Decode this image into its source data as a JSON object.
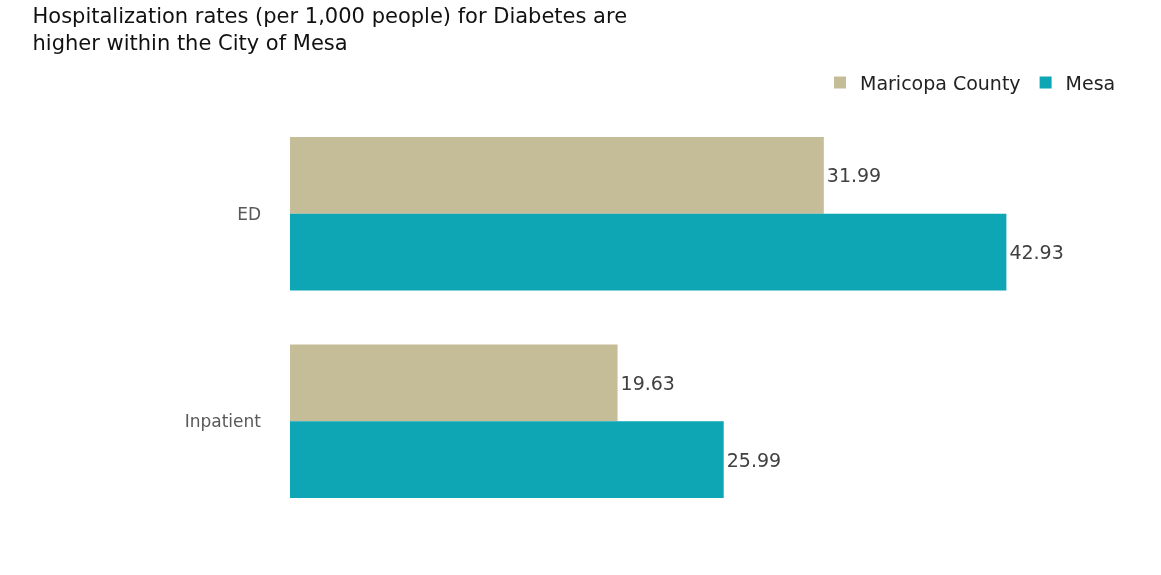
{
  "chart_data": {
    "type": "bar",
    "orientation": "horizontal",
    "title": "Hospitalization rates (per 1,000 people) for Diabetes are higher within the City of Mesa",
    "categories": [
      "ED",
      "Inpatient"
    ],
    "series": [
      {
        "name": "Maricopa County",
        "color": "#c5bd98",
        "values": [
          31.99,
          19.63
        ]
      },
      {
        "name": "Mesa",
        "color": "#0ea5b5",
        "values": [
          42.93,
          25.99
        ]
      }
    ],
    "data_labels": true,
    "legend": "top right"
  }
}
